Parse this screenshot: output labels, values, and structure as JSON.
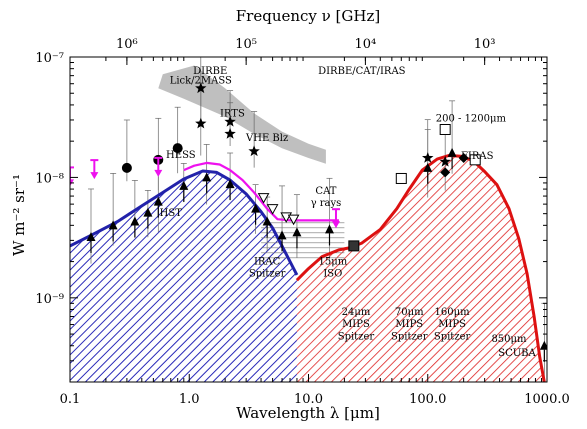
{
  "chart_data": {
    "type": "line",
    "x_scale": "log",
    "y_scale": "log",
    "xlabel": "Wavelength λ [μm]",
    "ylabel": "W m⁻² sr⁻¹",
    "top_xlabel": "Frequency ν [GHz]",
    "xlim": [
      0.1,
      1000
    ],
    "ylim": [
      2e-10,
      1e-07
    ],
    "x_ticks": [
      {
        "v": 0.1,
        "label": "0.1"
      },
      {
        "v": 1,
        "label": "1.0"
      },
      {
        "v": 10,
        "label": "10.0"
      },
      {
        "v": 100,
        "label": "100.0"
      },
      {
        "v": 1000,
        "label": "1000.0"
      }
    ],
    "y_ticks": [
      {
        "v": 1e-07,
        "label": "10⁻⁷"
      },
      {
        "v": 1e-08,
        "label": "10⁻⁸"
      },
      {
        "v": 1e-09,
        "label": "10⁻⁹"
      }
    ],
    "top_ticks": [
      {
        "v": 0.3,
        "label": "10⁶"
      },
      {
        "v": 3,
        "label": "10⁵"
      },
      {
        "v": 30,
        "label": "10⁴"
      },
      {
        "v": 300,
        "label": "10³"
      }
    ],
    "series": [
      {
        "color": "#2222aa",
        "hatch": "blue",
        "points": [
          [
            0.1,
            2.7e-09
          ],
          [
            0.15,
            3.3e-09
          ],
          [
            0.25,
            4.3e-09
          ],
          [
            0.4,
            5.8e-09
          ],
          [
            0.6,
            7.5e-09
          ],
          [
            0.9,
            9.7e-09
          ],
          [
            1.3,
            1.13e-08
          ],
          [
            1.7,
            1.1e-08
          ],
          [
            2.2,
            9.5e-09
          ],
          [
            3,
            7.3e-09
          ],
          [
            4,
            5.2e-09
          ],
          [
            5,
            3.8e-09
          ],
          [
            6,
            2.7e-09
          ],
          [
            7,
            2e-09
          ],
          [
            8,
            1.55e-09
          ]
        ]
      },
      {
        "color": "#dd1111",
        "hatch": "red",
        "points": [
          [
            8,
            1.4e-09
          ],
          [
            10,
            1.75e-09
          ],
          [
            13,
            2.2e-09
          ],
          [
            18,
            2.5e-09
          ],
          [
            22,
            2.6e-09
          ],
          [
            28,
            2.85e-09
          ],
          [
            40,
            3.7e-09
          ],
          [
            55,
            5.5e-09
          ],
          [
            70,
            8e-09
          ],
          [
            90,
            1.15e-08
          ],
          [
            120,
            1.42e-08
          ],
          [
            150,
            1.52e-08
          ],
          [
            190,
            1.5e-08
          ],
          [
            240,
            1.38e-08
          ],
          [
            300,
            1.12e-08
          ],
          [
            380,
            8.7e-09
          ],
          [
            480,
            5.5e-09
          ],
          [
            580,
            3.1e-09
          ],
          [
            680,
            1.6e-09
          ],
          [
            780,
            7e-10
          ],
          [
            870,
            3.2e-10
          ],
          [
            950,
            2e-10
          ]
        ]
      },
      {
        "color": "#ee11ee",
        "points": [
          [
            0.9,
            1.15e-08
          ],
          [
            1.1,
            1.25e-08
          ],
          [
            1.4,
            1.32e-08
          ],
          [
            1.8,
            1.28e-08
          ],
          [
            2.2,
            1.15e-08
          ],
          [
            2.8,
            9.5e-09
          ],
          [
            3.5,
            7.5e-09
          ],
          [
            4.5,
            5.5e-09
          ],
          [
            5.5,
            4.5e-09
          ],
          [
            7,
            4.4e-09
          ],
          [
            10,
            4.4e-09
          ],
          [
            14,
            4.4e-09
          ],
          [
            18,
            4.4e-09
          ]
        ]
      }
    ],
    "gray_band": [
      [
        1.1,
        8.5e-08
      ],
      [
        2,
        5.5e-08
      ],
      [
        3.5,
        3.4e-08
      ],
      [
        6,
        2.4e-08
      ],
      [
        10,
        1.9e-08
      ],
      [
        14,
        1.7e-08
      ],
      [
        14,
        1.3e-08
      ],
      [
        10,
        1.45e-08
      ],
      [
        6,
        1.75e-08
      ],
      [
        3.5,
        2.3e-08
      ],
      [
        2,
        3.2e-08
      ],
      [
        0.9,
        4.5e-08
      ],
      [
        0.55,
        5.5e-08
      ],
      [
        0.6,
        7.2e-08
      ]
    ],
    "stars": [
      [
        1.25,
        5.5e-08
      ],
      [
        1.25,
        2.8e-08
      ],
      [
        2.2,
        2.9e-08
      ],
      [
        2.2,
        2.3e-08
      ],
      [
        3.5,
        1.65e-08
      ],
      [
        100,
        1.45e-08
      ],
      [
        140,
        1.35e-08
      ]
    ],
    "circles": [
      [
        0.3,
        1.2e-08
      ],
      [
        0.55,
        1.4e-08
      ],
      [
        0.8,
        1.75e-08
      ]
    ],
    "triangles_up": [
      [
        0.15,
        3.2e-09
      ],
      [
        0.23,
        4e-09
      ],
      [
        0.35,
        4.3e-09
      ],
      [
        0.45,
        5.1e-09
      ],
      [
        0.55,
        6.3e-09
      ],
      [
        0.9,
        8.5e-09
      ],
      [
        1.4,
        1e-08
      ],
      [
        2.2,
        8.8e-09
      ],
      [
        3.6,
        5.5e-09
      ],
      [
        4.5,
        4.3e-09
      ],
      [
        6,
        3.3e-09
      ],
      [
        8,
        3.5e-09
      ],
      [
        15,
        3.7e-09
      ],
      [
        100,
        1.2e-08
      ],
      [
        160,
        1.6e-08
      ],
      [
        950,
        4e-10
      ]
    ],
    "triangles_down": [
      [
        4.2,
        6.8e-09
      ],
      [
        5,
        5.5e-09
      ],
      [
        6.5,
        4.7e-09
      ],
      [
        7.5,
        4.5e-09
      ]
    ],
    "squares": [
      [
        140,
        2.5e-08
      ],
      [
        250,
        1.4e-08
      ],
      [
        60,
        9.8e-09
      ],
      [
        24,
        2.7e-09
      ]
    ],
    "diamonds": [
      [
        140,
        1.1e-08
      ],
      [
        200,
        1.45e-08
      ]
    ],
    "magenta_arrows": [
      [
        0.1,
        1e-08
      ],
      [
        0.16,
        1.15e-08
      ],
      [
        0.55,
        1.2e-08
      ],
      [
        17,
        4.5e-09
      ]
    ],
    "annotations": [
      {
        "text": "DIRBE",
        "x": 1.5,
        "y": 7.2e-08
      },
      {
        "text": "Lick/2MASS",
        "x": 1.25,
        "y": 6e-08
      },
      {
        "text": "IRTS",
        "x": 2.3,
        "y": 3.2e-08
      },
      {
        "text": "VHE Blz",
        "x": 4.5,
        "y": 2e-08
      },
      {
        "text": "HESS",
        "x": 0.85,
        "y": 1.45e-08
      },
      {
        "text": "DIRBE/CAT/IRAS",
        "x": 28,
        "y": 7.2e-08
      },
      {
        "text": "200 - 1200μm",
        "x": 230,
        "y": 2.9e-08
      },
      {
        "text": "FIRAS",
        "x": 260,
        "y": 1.42e-08
      },
      {
        "text": "CAT",
        "x": 14,
        "y": 7.3e-09
      },
      {
        "text": "γ rays",
        "x": 14,
        "y": 5.8e-09
      },
      {
        "text": "HST",
        "x": 0.7,
        "y": 4.8e-09
      },
      {
        "text": "IRAC",
        "x": 4.5,
        "y": 1.9e-09
      },
      {
        "text": "Spitzer",
        "x": 4.5,
        "y": 1.5e-09
      },
      {
        "text": "15μm",
        "x": 16,
        "y": 1.9e-09
      },
      {
        "text": "ISO",
        "x": 16,
        "y": 1.5e-09
      },
      {
        "text": "24μm",
        "x": 25,
        "y": 7.2e-10
      },
      {
        "text": "MIPS",
        "x": 25,
        "y": 5.7e-10
      },
      {
        "text": "Spitzer",
        "x": 25,
        "y": 4.5e-10
      },
      {
        "text": "70μm",
        "x": 70,
        "y": 7.2e-10
      },
      {
        "text": "MIPS",
        "x": 70,
        "y": 5.7e-10
      },
      {
        "text": "Spitzer",
        "x": 70,
        "y": 4.5e-10
      },
      {
        "text": "160μm",
        "x": 160,
        "y": 7.2e-10
      },
      {
        "text": "MIPS",
        "x": 160,
        "y": 5.7e-10
      },
      {
        "text": "Spitzer",
        "x": 160,
        "y": 4.5e-10
      },
      {
        "text": "850μm",
        "x": 480,
        "y": 4.3e-10
      },
      {
        "text": "SCUBA",
        "x": 560,
        "y": 3.3e-10
      }
    ]
  }
}
